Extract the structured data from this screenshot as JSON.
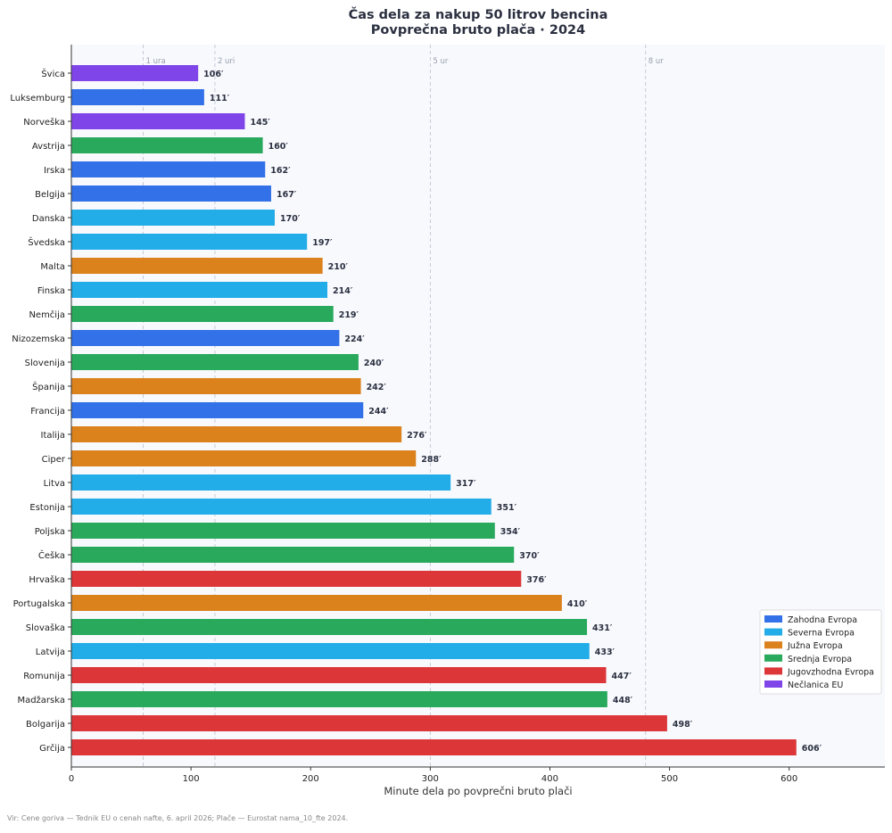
{
  "chart_data": {
    "type": "bar",
    "orientation": "horizontal",
    "title": "Čas dela za nakup 50 litrov bencina",
    "subtitle": "Povprečna bruto plača · 2024",
    "xlabel": "Minute dela po povprečni bruto plači",
    "ylabel": "",
    "xlim": [
      0,
      680
    ],
    "xticks": [
      0,
      100,
      200,
      300,
      400,
      500,
      600
    ],
    "value_suffix": "′",
    "reference_lines": [
      {
        "value": 60,
        "label": "1 ura"
      },
      {
        "value": 120,
        "label": "2 uri"
      },
      {
        "value": 300,
        "label": "5 ur"
      },
      {
        "value": 480,
        "label": "8 ur"
      }
    ],
    "groups": [
      {
        "name": "Zahodna Evropa",
        "color": "#3371e8"
      },
      {
        "name": "Severna Evropa",
        "color": "#22ace8"
      },
      {
        "name": "Južna Evropa",
        "color": "#db821d"
      },
      {
        "name": "Srednja Evropa",
        "color": "#28a95b"
      },
      {
        "name": "Jugovzhodna Evropa",
        "color": "#dc3639"
      },
      {
        "name": "Nečlanica EU",
        "color": "#7f45e8"
      }
    ],
    "legend_position": "bottom-right",
    "bars": [
      {
        "category": "Švica",
        "value": 106,
        "group": 5
      },
      {
        "category": "Luksemburg",
        "value": 111,
        "group": 0
      },
      {
        "category": "Norveška",
        "value": 145,
        "group": 5
      },
      {
        "category": "Avstrija",
        "value": 160,
        "group": 3
      },
      {
        "category": "Irska",
        "value": 162,
        "group": 0
      },
      {
        "category": "Belgija",
        "value": 167,
        "group": 0
      },
      {
        "category": "Danska",
        "value": 170,
        "group": 1
      },
      {
        "category": "Švedska",
        "value": 197,
        "group": 1
      },
      {
        "category": "Malta",
        "value": 210,
        "group": 2
      },
      {
        "category": "Finska",
        "value": 214,
        "group": 1
      },
      {
        "category": "Nemčija",
        "value": 219,
        "group": 3
      },
      {
        "category": "Nizozemska",
        "value": 224,
        "group": 0
      },
      {
        "category": "Slovenija",
        "value": 240,
        "group": 3
      },
      {
        "category": "Španija",
        "value": 242,
        "group": 2
      },
      {
        "category": "Francija",
        "value": 244,
        "group": 0
      },
      {
        "category": "Italija",
        "value": 276,
        "group": 2
      },
      {
        "category": "Ciper",
        "value": 288,
        "group": 2
      },
      {
        "category": "Litva",
        "value": 317,
        "group": 1
      },
      {
        "category": "Estonija",
        "value": 351,
        "group": 1
      },
      {
        "category": "Poljska",
        "value": 354,
        "group": 3
      },
      {
        "category": "Češka",
        "value": 370,
        "group": 3
      },
      {
        "category": "Hrvaška",
        "value": 376,
        "group": 4
      },
      {
        "category": "Portugalska",
        "value": 410,
        "group": 2
      },
      {
        "category": "Slovaška",
        "value": 431,
        "group": 3
      },
      {
        "category": "Latvija",
        "value": 433,
        "group": 1
      },
      {
        "category": "Romunija",
        "value": 447,
        "group": 4
      },
      {
        "category": "Madžarska",
        "value": 448,
        "group": 3
      },
      {
        "category": "Bolgarija",
        "value": 498,
        "group": 4
      },
      {
        "category": "Grčija",
        "value": 606,
        "group": 4
      }
    ],
    "source": "Vir: Cene goriva — Tednik EU o cenah nafte, 6. april 2026; Plače — Eurostat nama_10_fte 2024."
  }
}
